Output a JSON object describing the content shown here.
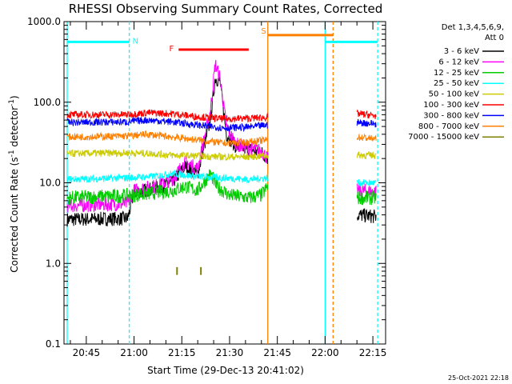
{
  "chart_data": {
    "type": "line",
    "title": "RHESSI Observing Summary Count Rates, Corrected",
    "xlabel": "Start Time (29-Dec-13 20:41:02)",
    "ylabel_prefix": "Corrected Count Rate (s",
    "ylabel_sup": "-1",
    "ylabel_mid": " detector",
    "ylabel_sup2": "-1",
    "ylabel_suffix": ")",
    "x_scale": "time (minutes)",
    "y_scale": "log",
    "xlim_minutes": [
      1238,
      1339
    ],
    "ylim": [
      0.1,
      1000
    ],
    "x_ticks": [
      {
        "minutes": 1245,
        "label": "20:45"
      },
      {
        "minutes": 1260,
        "label": "21:00"
      },
      {
        "minutes": 1275,
        "label": "21:15"
      },
      {
        "minutes": 1290,
        "label": "21:30"
      },
      {
        "minutes": 1305,
        "label": "21:45"
      },
      {
        "minutes": 1320,
        "label": "22:00"
      },
      {
        "minutes": 1335,
        "label": "22:15"
      }
    ],
    "y_ticks": [
      {
        "value": 0.1,
        "label": "0.1"
      },
      {
        "value": 1,
        "label": "1.0"
      },
      {
        "value": 10,
        "label": "10.0"
      },
      {
        "value": 100,
        "label": "100.0"
      },
      {
        "value": 1000,
        "label": "1000.0"
      }
    ],
    "legend_header": [
      "Det 1,3,4,5,6,9,",
      "Att 0"
    ],
    "series": [
      {
        "name": "3 - 6 keV",
        "color": "#000000",
        "base": 3.6,
        "points": [
          [
            1239,
            3.5
          ],
          [
            1258,
            3.6
          ],
          [
            1260,
            7.5
          ],
          [
            1266,
            8.5
          ],
          [
            1272,
            10
          ],
          [
            1276,
            16
          ],
          [
            1280,
            13
          ],
          [
            1284,
            60
          ],
          [
            1285.5,
            200
          ],
          [
            1287,
            180
          ],
          [
            1289,
            40
          ],
          [
            1292,
            28
          ],
          [
            1296,
            26
          ],
          [
            1300,
            24
          ],
          [
            1302,
            20
          ]
        ],
        "post": [
          [
            1330,
            4
          ],
          [
            1336,
            3.8
          ]
        ]
      },
      {
        "name": "6 - 12 keV",
        "color": "#ff00ff",
        "base": 5,
        "points": [
          [
            1239,
            5.2
          ],
          [
            1258,
            5.5
          ],
          [
            1260,
            8
          ],
          [
            1266,
            9
          ],
          [
            1272,
            11
          ],
          [
            1276,
            18
          ],
          [
            1280,
            15
          ],
          [
            1284,
            80
          ],
          [
            1285.5,
            300
          ],
          [
            1287,
            200
          ],
          [
            1289,
            50
          ],
          [
            1292,
            30
          ],
          [
            1296,
            27
          ],
          [
            1300,
            25
          ],
          [
            1302,
            20
          ]
        ],
        "post": [
          [
            1330,
            8
          ],
          [
            1336,
            7.8
          ]
        ]
      },
      {
        "name": "12 - 25 keV",
        "color": "#00cc00",
        "base": 6.5,
        "points": [
          [
            1239,
            6.5
          ],
          [
            1260,
            7
          ],
          [
            1272,
            8
          ],
          [
            1276,
            9
          ],
          [
            1280,
            8
          ],
          [
            1284,
            13
          ],
          [
            1286,
            9
          ],
          [
            1290,
            7
          ],
          [
            1296,
            6.5
          ],
          [
            1300,
            7
          ],
          [
            1302,
            9
          ]
        ],
        "post": [
          [
            1330,
            6.5
          ],
          [
            1336,
            6.5
          ]
        ]
      },
      {
        "name": "25 - 50 keV",
        "color": "#00ffff",
        "base": 11,
        "points": [
          [
            1239,
            11
          ],
          [
            1258,
            11.5
          ],
          [
            1266,
            12
          ],
          [
            1272,
            13
          ],
          [
            1280,
            12
          ],
          [
            1288,
            11.5
          ],
          [
            1296,
            11
          ],
          [
            1302,
            11.5
          ]
        ],
        "post": [
          [
            1330,
            10
          ],
          [
            1336,
            10
          ]
        ]
      },
      {
        "name": "50 - 100 keV",
        "color": "#cccc00",
        "base": 23,
        "points": [
          [
            1239,
            23
          ],
          [
            1258,
            23.5
          ],
          [
            1266,
            23
          ],
          [
            1272,
            22
          ],
          [
            1280,
            21.5
          ],
          [
            1288,
            21
          ],
          [
            1296,
            21
          ],
          [
            1302,
            22
          ]
        ],
        "post": [
          [
            1330,
            22
          ],
          [
            1336,
            22
          ]
        ]
      },
      {
        "name": "100 - 300 keV",
        "color": "#ff0000",
        "base": 70,
        "points": [
          [
            1239,
            70
          ],
          [
            1258,
            70
          ],
          [
            1264,
            74
          ],
          [
            1272,
            72
          ],
          [
            1280,
            66
          ],
          [
            1288,
            62
          ],
          [
            1296,
            63
          ],
          [
            1302,
            65
          ]
        ],
        "post": [
          [
            1330,
            72
          ],
          [
            1336,
            68
          ]
        ]
      },
      {
        "name": "300 - 800 keV",
        "color": "#0000ff",
        "base": 56,
        "points": [
          [
            1239,
            56
          ],
          [
            1258,
            57
          ],
          [
            1264,
            60
          ],
          [
            1272,
            57
          ],
          [
            1280,
            52
          ],
          [
            1288,
            48
          ],
          [
            1296,
            49
          ],
          [
            1302,
            52
          ]
        ],
        "post": [
          [
            1330,
            56
          ],
          [
            1336,
            54
          ]
        ]
      },
      {
        "name": "800 - 7000 keV",
        "color": "#ff8000",
        "base": 37,
        "points": [
          [
            1239,
            37
          ],
          [
            1258,
            38
          ],
          [
            1264,
            40
          ],
          [
            1272,
            37
          ],
          [
            1280,
            34
          ],
          [
            1288,
            31
          ],
          [
            1296,
            32
          ],
          [
            1302,
            34
          ]
        ],
        "post": [
          [
            1330,
            37
          ],
          [
            1336,
            35
          ]
        ]
      },
      {
        "name": "7000 - 15000 keV",
        "color": "#808000",
        "base": 0.9,
        "points": [],
        "post": []
      }
    ],
    "bars": [
      {
        "label": "N",
        "color": "#00ffff",
        "x_start": 1239,
        "x_end": 1258.5,
        "y": 560
      },
      {
        "label": "F",
        "color": "#ff0000",
        "x_start": 1274,
        "x_end": 1296,
        "y": 450
      },
      {
        "label": "S",
        "color": "#ff8000",
        "x_start": 1302,
        "x_end": 1322.5,
        "y": 680
      },
      {
        "label": "",
        "color": "#00ffff",
        "x_start": 1320,
        "x_end": 1336.5,
        "y": 560
      }
    ],
    "vlines": [
      {
        "x": 1239,
        "color": "#00ffff",
        "dashed": false
      },
      {
        "x": 1258.5,
        "color": "#00ffff",
        "dashed": true
      },
      {
        "x": 1302,
        "color": "#ff8000",
        "dashed": false
      },
      {
        "x": 1320,
        "color": "#00ffff",
        "dashed": false
      },
      {
        "x": 1322.5,
        "color": "#ff8000",
        "dashed": true
      },
      {
        "x": 1336.5,
        "color": "#00ffff",
        "dashed": true
      }
    ],
    "ticks_olive": [
      1273.5,
      1281
    ],
    "ticks_olive_y": [
      0.72,
      0.9
    ],
    "timestamp": "25-Oct-2021 22:18"
  }
}
